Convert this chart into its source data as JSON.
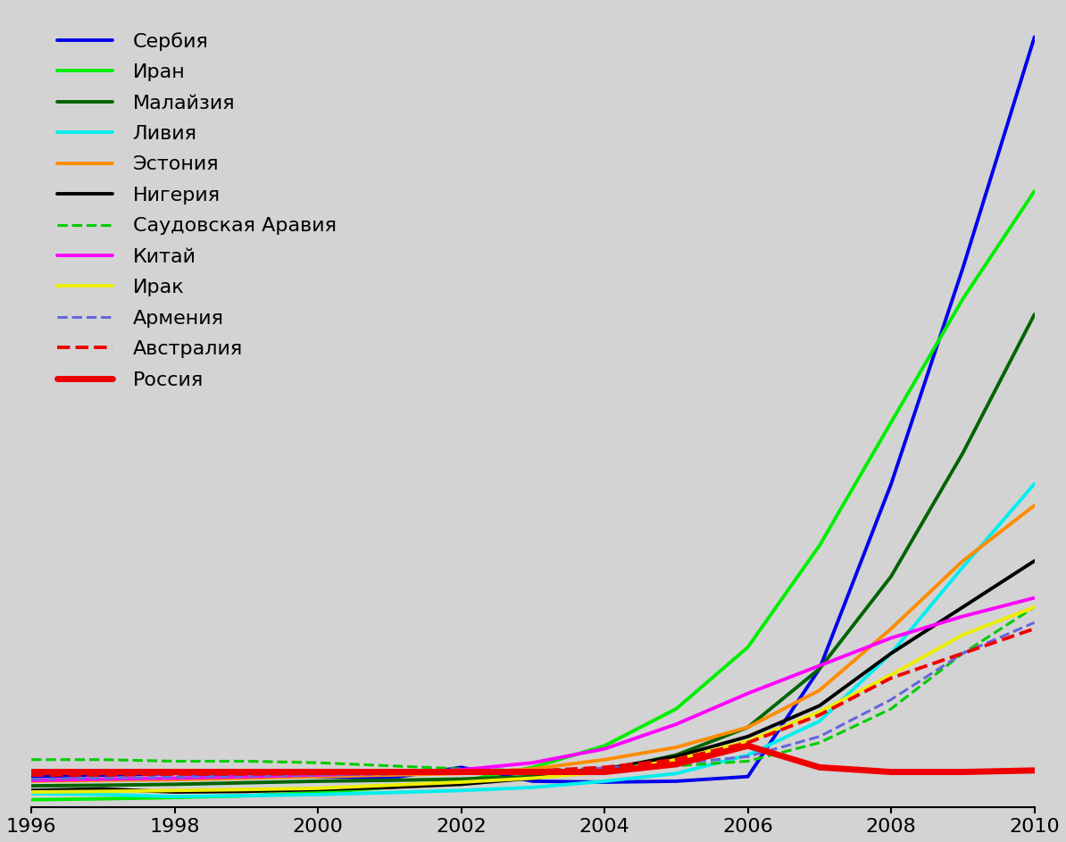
{
  "years": [
    1996,
    1997,
    1998,
    1999,
    2000,
    2001,
    2002,
    2003,
    2004,
    2005,
    2006,
    2007,
    2008,
    2009,
    2010
  ],
  "series": [
    {
      "label": "Сербия",
      "color": "#0000EE",
      "linestyle": "-",
      "linewidth": 2.8,
      "values": [
        1.0,
        1.05,
        1.1,
        1.05,
        1.0,
        0.95,
        1.3,
        0.85,
        0.82,
        0.85,
        1.0,
        4.5,
        10.5,
        17.5,
        25.0
      ]
    },
    {
      "label": "Иран",
      "color": "#00EE00",
      "linestyle": "-",
      "linewidth": 2.8,
      "values": [
        0.25,
        0.28,
        0.32,
        0.38,
        0.48,
        0.65,
        0.85,
        1.3,
        2.0,
        3.2,
        5.2,
        8.5,
        12.5,
        16.5,
        20.0
      ]
    },
    {
      "label": "Малайзия",
      "color": "#006400",
      "linestyle": "-",
      "linewidth": 2.8,
      "values": [
        0.7,
        0.72,
        0.75,
        0.8,
        0.85,
        0.88,
        0.92,
        1.0,
        1.2,
        1.7,
        2.6,
        4.5,
        7.5,
        11.5,
        16.0
      ]
    },
    {
      "label": "Ливия",
      "color": "#00EEEE",
      "linestyle": "-",
      "linewidth": 2.8,
      "values": [
        0.45,
        0.42,
        0.35,
        0.38,
        0.42,
        0.48,
        0.55,
        0.65,
        0.85,
        1.1,
        1.7,
        2.8,
        5.0,
        7.8,
        10.5
      ]
    },
    {
      "label": "Эстония",
      "color": "#FF8C00",
      "linestyle": "-",
      "linewidth": 2.8,
      "values": [
        0.85,
        0.88,
        0.9,
        0.95,
        1.0,
        1.05,
        1.1,
        1.25,
        1.55,
        1.95,
        2.6,
        3.8,
        5.8,
        8.0,
        9.8
      ]
    },
    {
      "label": "Нигерия",
      "color": "#000000",
      "linestyle": "-",
      "linewidth": 2.8,
      "values": [
        0.55,
        0.6,
        0.5,
        0.52,
        0.58,
        0.65,
        0.75,
        0.95,
        1.25,
        1.65,
        2.3,
        3.3,
        5.0,
        6.5,
        8.0
      ]
    },
    {
      "label": "Саудовская Аравия",
      "color": "#00CC00",
      "linestyle": "--",
      "linewidth": 2.2,
      "values": [
        1.55,
        1.55,
        1.5,
        1.5,
        1.45,
        1.35,
        1.25,
        1.2,
        1.25,
        1.35,
        1.5,
        2.1,
        3.2,
        5.0,
        6.5
      ]
    },
    {
      "label": "Китай",
      "color": "#FF00FF",
      "linestyle": "-",
      "linewidth": 2.8,
      "values": [
        0.88,
        0.92,
        0.95,
        1.0,
        1.05,
        1.12,
        1.22,
        1.45,
        1.9,
        2.7,
        3.7,
        4.6,
        5.5,
        6.2,
        6.8
      ]
    },
    {
      "label": "Ирак",
      "color": "#EEEE00",
      "linestyle": "-",
      "linewidth": 2.8,
      "values": [
        0.5,
        0.52,
        0.55,
        0.58,
        0.62,
        0.72,
        0.82,
        0.95,
        1.15,
        1.55,
        2.15,
        3.1,
        4.3,
        5.6,
        6.5
      ]
    },
    {
      "label": "Армения",
      "color": "#6666DD",
      "linestyle": "--",
      "linewidth": 2.2,
      "values": [
        0.92,
        0.95,
        0.98,
        1.02,
        1.05,
        1.08,
        1.12,
        1.18,
        1.28,
        1.42,
        1.65,
        2.3,
        3.5,
        5.0,
        6.0
      ]
    },
    {
      "label": "Австралия",
      "color": "#EE0000",
      "linestyle": "--",
      "linewidth": 2.8,
      "values": [
        1.05,
        1.05,
        1.08,
        1.08,
        1.1,
        1.1,
        1.12,
        1.18,
        1.3,
        1.55,
        2.1,
        3.0,
        4.2,
        5.0,
        5.8
      ]
    },
    {
      "label": "Россия",
      "color": "#EE0000",
      "linestyle": "-",
      "linewidth": 5.0,
      "values": [
        1.15,
        1.15,
        1.15,
        1.15,
        1.15,
        1.15,
        1.15,
        1.15,
        1.15,
        1.4,
        2.0,
        1.3,
        1.15,
        1.15,
        1.2
      ]
    }
  ],
  "xlim": [
    1996,
    2010
  ],
  "ylim": [
    0,
    26
  ],
  "xticks": [
    1996,
    1998,
    2000,
    2002,
    2004,
    2006,
    2008,
    2010
  ],
  "background_color": "#D3D3D3",
  "legend_fontsize": 16,
  "tick_fontsize": 16
}
